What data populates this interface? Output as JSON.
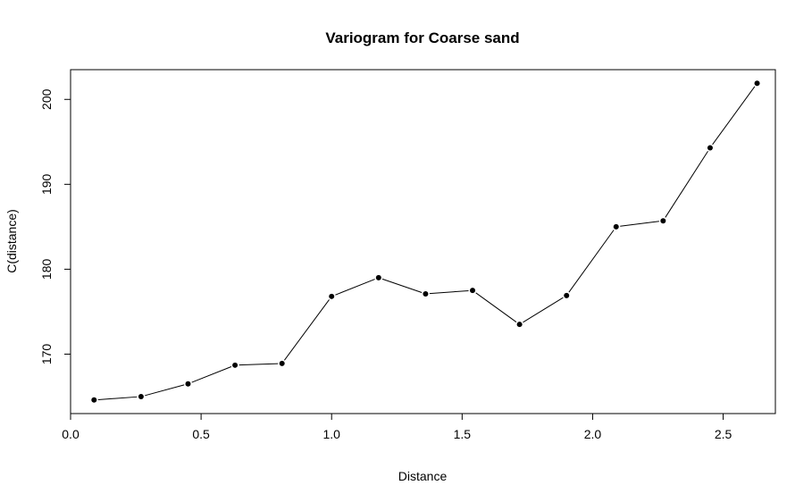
{
  "chart_data": {
    "type": "line",
    "title": "Variogram for Coarse sand",
    "xlabel": "Distance",
    "ylabel": "C(distance)",
    "x": [
      0.09,
      0.27,
      0.45,
      0.63,
      0.81,
      1.0,
      1.18,
      1.36,
      1.54,
      1.72,
      1.9,
      2.09,
      2.27,
      2.45,
      2.63
    ],
    "y": [
      164.6,
      165.0,
      166.5,
      168.7,
      168.9,
      176.8,
      179.0,
      177.1,
      177.5,
      173.5,
      176.9,
      185.0,
      185.7,
      194.3,
      201.9
    ],
    "xlim": [
      0.0,
      2.7
    ],
    "ylim": [
      163.0,
      203.5
    ],
    "xticks": [
      0.0,
      0.5,
      1.0,
      1.5,
      2.0,
      2.5
    ],
    "xtick_labels": [
      "0.0",
      "0.5",
      "1.0",
      "1.5",
      "2.0",
      "2.5"
    ],
    "yticks": [
      170,
      180,
      190,
      200
    ],
    "ytick_labels": [
      "170",
      "180",
      "190",
      "200"
    ],
    "grid": false,
    "marker": "filled-circle",
    "line_color": "#000000",
    "point_color": "#000000"
  }
}
